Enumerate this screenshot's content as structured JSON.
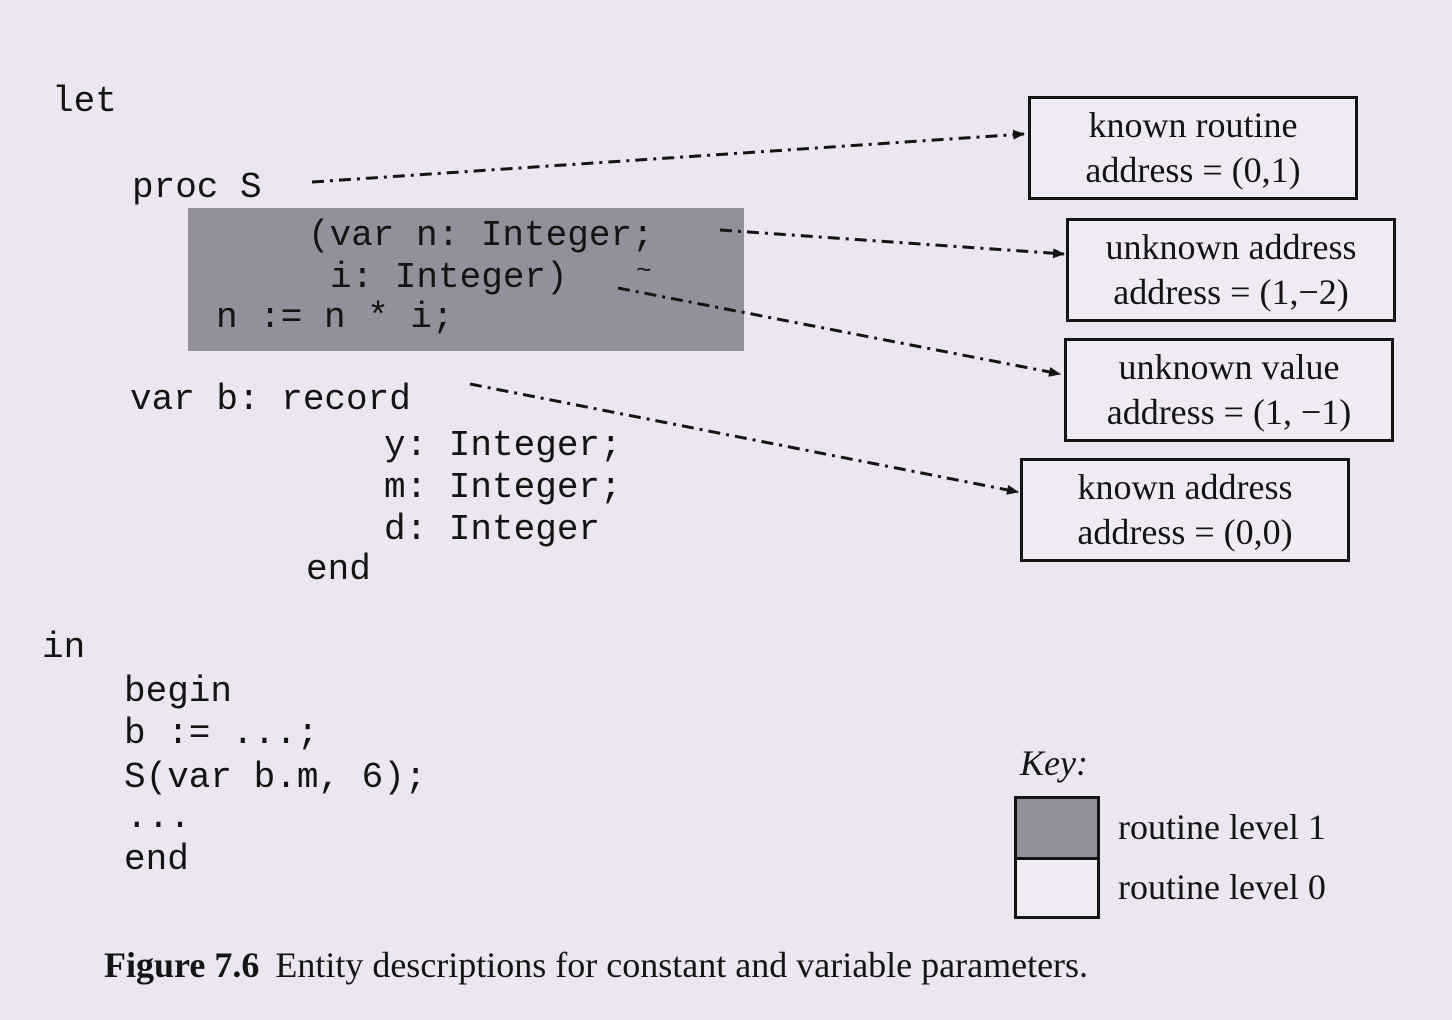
{
  "code": {
    "let": "let",
    "proc": "proc S",
    "param1": "(var n: Integer;",
    "param2": "i: Integer)",
    "tilde": "~",
    "body": "n := n * i;",
    "var_b": "var b: record",
    "field_y": "y: Integer;",
    "field_m": "m: Integer;",
    "field_d": "d: Integer",
    "end_record": "end",
    "in": "in",
    "begin": "begin",
    "assign": "b := ...;",
    "call": "S(var b.m, 6);",
    "ellipsis": "...",
    "end_main": "end"
  },
  "entities": [
    {
      "line1": "known routine",
      "line2": "address = (0,1)"
    },
    {
      "line1": "unknown address",
      "line2": "address = (1,−2)"
    },
    {
      "line1": "unknown value",
      "line2": "address = (1, −1)"
    },
    {
      "line1": "known address",
      "line2": "address = (0,0)"
    }
  ],
  "key": {
    "title": "Key:",
    "level1": "routine level 1",
    "level0": "routine level 0"
  },
  "caption": {
    "label": "Figure 7.6",
    "text": "Entity descriptions for constant and variable parameters."
  },
  "colors": {
    "shade": "#948f9c",
    "page": "#ebe6f1",
    "ink": "#141414"
  }
}
